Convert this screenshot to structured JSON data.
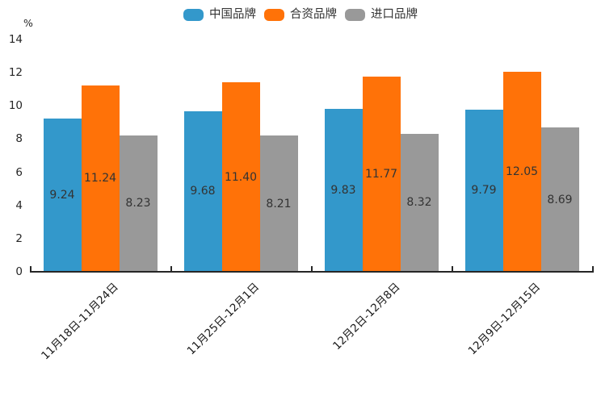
{
  "chart_data": {
    "type": "bar",
    "title": "",
    "categories": [
      "11月18日-11月24日",
      "11月25日-12月1日",
      "12月2日-12月8日",
      "12月9日-12月15日"
    ],
    "series": [
      {
        "name": "中国品牌",
        "color": "#3398cb",
        "values": [
          9.24,
          9.68,
          9.83,
          9.79
        ]
      },
      {
        "name": "合资品牌",
        "color": "#ff7208",
        "values": [
          11.24,
          11.4,
          11.77,
          12.05
        ]
      },
      {
        "name": "进口品牌",
        "color": "#999999",
        "values": [
          8.23,
          8.21,
          8.32,
          8.69
        ]
      }
    ],
    "xlabel": "",
    "ylabel": "%",
    "ylim": [
      0,
      14
    ],
    "yticks": [
      0,
      2,
      4,
      6,
      8,
      10,
      12,
      14
    ],
    "grid": false,
    "legend_position": "top",
    "value_labels": true,
    "colors": {
      "axis": "#262626",
      "tick_text": "#262626",
      "value_text": "#333333",
      "background": "#ffffff"
    }
  }
}
